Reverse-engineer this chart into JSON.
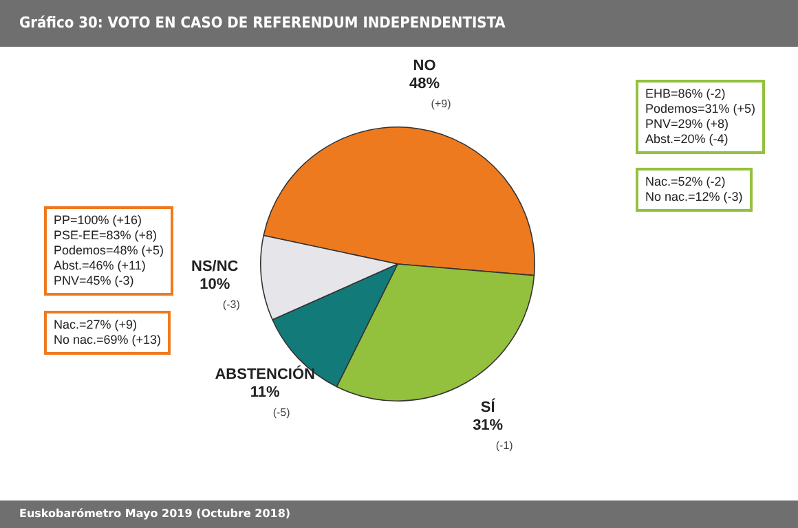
{
  "chart_data": {
    "type": "pie",
    "title": "Gráfico 30: VOTO EN CASO DE REFERENDUM INDEPENDENTISTA",
    "categories": [
      "NO",
      "SÍ",
      "ABSTENCIÓN",
      "NS/NC"
    ],
    "values": [
      48,
      31,
      11,
      10
    ],
    "value_labels": [
      "48%",
      "31%",
      "11%",
      "10%"
    ],
    "colors": [
      "#ee7a1f",
      "#93c13e",
      "#137a7a",
      "#e6e6ea"
    ],
    "legend": false,
    "annotations": [
      {
        "text": "(+9)",
        "x": "NO"
      },
      {
        "text": "(-1)",
        "x": "SÍ"
      },
      {
        "text": "(-5)",
        "x": "ABSTENCIÓN"
      },
      {
        "text": "(-3)",
        "x": "NS/NC"
      },
      {
        "text": "PP=100% (+16)\nPSE-EE=83% (+8)\nPodemos=48% (+5)\nAbst.=46% (+11)\nPNV=45% (-3)",
        "x": "NO"
      },
      {
        "text": "Nac.=27% (+9)\nNo nac.=69% (+13)",
        "x": "NO"
      },
      {
        "text": "EHB=86% (-2)\nPodemos=31% (+5)\nPNV=29% (+8)\nAbst.=20% (-4)",
        "x": "SÍ"
      },
      {
        "text": "Nac.=52% (-2)\nNo nac.=12% (-3)",
        "x": "SÍ"
      },
      "Euskobarómetro Mayo 2019 (Octubre 2018)"
    ]
  }
}
